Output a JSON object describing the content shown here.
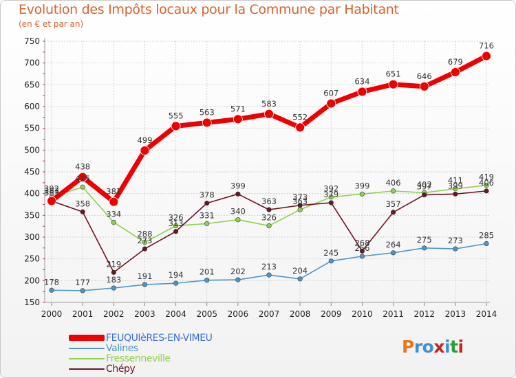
{
  "title": "Evolution des Impôts locaux pour la Commune par Habitant",
  "subtitle": "(en € et par an)",
  "logo": {
    "text": "Proxiti",
    "colors": [
      "#e67817",
      "#3c91cf",
      "#3c91cf",
      "#c7241f",
      "#3c91cf",
      "#2aa036",
      "#c7241f"
    ]
  },
  "chart_data": {
    "type": "line",
    "title": "Evolution des Impôts locaux pour la Commune par Habitant",
    "ylabel": "(en € et par an)",
    "xlabel": "",
    "x": [
      "2000",
      "2001",
      "2002",
      "2003",
      "2004",
      "2005",
      "2006",
      "2007",
      "2008",
      "2009",
      "2010",
      "2011",
      "2012",
      "2013",
      "2014"
    ],
    "ylim": [
      150,
      750
    ],
    "yticks": [
      150,
      200,
      250,
      300,
      350,
      400,
      450,
      500,
      550,
      600,
      650,
      700,
      750
    ],
    "grid": true,
    "legend": "bottom-left",
    "series": [
      {
        "name": "FEUQUIèRES-EN-VIMEU",
        "color": "#ee0000",
        "values": [
          383,
          438,
          381,
          499,
          555,
          563,
          571,
          583,
          552,
          607,
          634,
          651,
          646,
          679,
          716
        ]
      },
      {
        "name": "Valines",
        "color": "#4f96c8",
        "values": [
          178,
          177,
          183,
          191,
          194,
          201,
          202,
          213,
          204,
          245,
          256,
          264,
          275,
          273,
          285
        ]
      },
      {
        "name": "Fressenneville",
        "color": "#8ed14e",
        "values": [
          392,
          415,
          334,
          288,
          326,
          331,
          340,
          326,
          363,
          392,
          399,
          406,
          402,
          411,
          419
        ]
      },
      {
        "name": "Chépy",
        "color": "#6b1620",
        "values": [
          383,
          358,
          219,
          273,
          313,
          378,
          399,
          363,
          373,
          379,
          268,
          357,
          397,
          399,
          406
        ]
      }
    ]
  }
}
